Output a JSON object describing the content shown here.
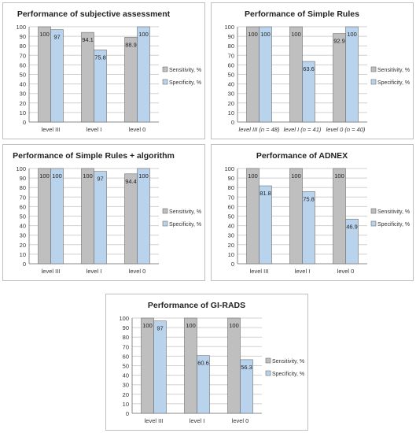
{
  "legend": {
    "sensitivity_label": "Sensitivity, %",
    "specificity_label": "Specificity, %"
  },
  "colors": {
    "sensitivity": "#bfbfbf",
    "specificity": "#b9d3ec",
    "bar_stroke": "#6f6f6f",
    "grid": "#d0d0d0"
  },
  "chart_data": [
    {
      "type": "bar",
      "title": "Performance of subjective assessment",
      "categories": [
        "level III",
        "level I",
        "level 0"
      ],
      "ylim": [
        0,
        100
      ],
      "yticks": [
        0,
        10,
        20,
        30,
        40,
        50,
        60,
        70,
        80,
        90,
        100
      ],
      "legend_position": "right",
      "grid": true,
      "series": [
        {
          "name": "Sensitivity, %",
          "values": [
            100,
            94.1,
            88.9
          ],
          "labels": [
            "100",
            "94.1",
            "88.9"
          ]
        },
        {
          "name": "Specificity, %",
          "values": [
            97,
            75.8,
            100
          ],
          "labels": [
            "97",
            "75.8",
            "100"
          ]
        }
      ]
    },
    {
      "type": "bar",
      "title": "Performance of Simple Rules",
      "categories": [
        "level III (n = 48)",
        "level I (n = 41)",
        "level 0 (n = 40)"
      ],
      "category_style": "italic",
      "ylim": [
        0,
        100
      ],
      "yticks": [
        0,
        10,
        20,
        30,
        40,
        50,
        60,
        70,
        80,
        90,
        100
      ],
      "legend_position": "right",
      "grid": true,
      "series": [
        {
          "name": "Sensitivity, %",
          "values": [
            100,
            100,
            92.9
          ],
          "labels": [
            "100",
            "100",
            "92.9"
          ]
        },
        {
          "name": "Specificity, %",
          "values": [
            100,
            63.6,
            100
          ],
          "labels": [
            "100",
            "63.6",
            "100"
          ]
        }
      ]
    },
    {
      "type": "bar",
      "title": "Performance of Simple Rules + algorithm",
      "categories": [
        "level III",
        "level I",
        "level 0"
      ],
      "ylim": [
        0,
        100
      ],
      "yticks": [
        0,
        10,
        20,
        30,
        40,
        50,
        60,
        70,
        80,
        90,
        100
      ],
      "legend_position": "right",
      "grid": true,
      "series": [
        {
          "name": "Sensitivity, %",
          "values": [
            100,
            100,
            94.4
          ],
          "labels": [
            "100",
            "100",
            "94.4"
          ]
        },
        {
          "name": "Specificity, %",
          "values": [
            100,
            97,
            100
          ],
          "labels": [
            "100",
            "97",
            "100"
          ]
        }
      ]
    },
    {
      "type": "bar",
      "title": "Performance of ADNEX",
      "categories": [
        "level III",
        "level I",
        "level 0"
      ],
      "ylim": [
        0,
        100
      ],
      "yticks": [
        0,
        10,
        20,
        30,
        40,
        50,
        60,
        70,
        80,
        90,
        100
      ],
      "legend_position": "right",
      "grid": true,
      "series": [
        {
          "name": "Sensitivity, %",
          "values": [
            100,
            100,
            100
          ],
          "labels": [
            "100",
            "100",
            "100"
          ]
        },
        {
          "name": "Specificity, %",
          "values": [
            81.8,
            75.8,
            46.9
          ],
          "labels": [
            "81.8",
            "75.8",
            "46.9"
          ]
        }
      ]
    },
    {
      "type": "bar",
      "title": "Performance of GI-RADS",
      "categories": [
        "level III",
        "level I",
        "level 0"
      ],
      "ylim": [
        0,
        100
      ],
      "yticks": [
        0,
        10,
        20,
        30,
        40,
        50,
        60,
        70,
        80,
        90,
        100
      ],
      "legend_position": "right",
      "grid": true,
      "series": [
        {
          "name": "Sensitivity, %",
          "values": [
            100,
            100,
            100
          ],
          "labels": [
            "100",
            "100",
            "100"
          ]
        },
        {
          "name": "Specificity, %",
          "values": [
            97,
            60.6,
            56.3
          ],
          "labels": [
            "97",
            "60.6",
            "56.3"
          ]
        }
      ]
    }
  ]
}
